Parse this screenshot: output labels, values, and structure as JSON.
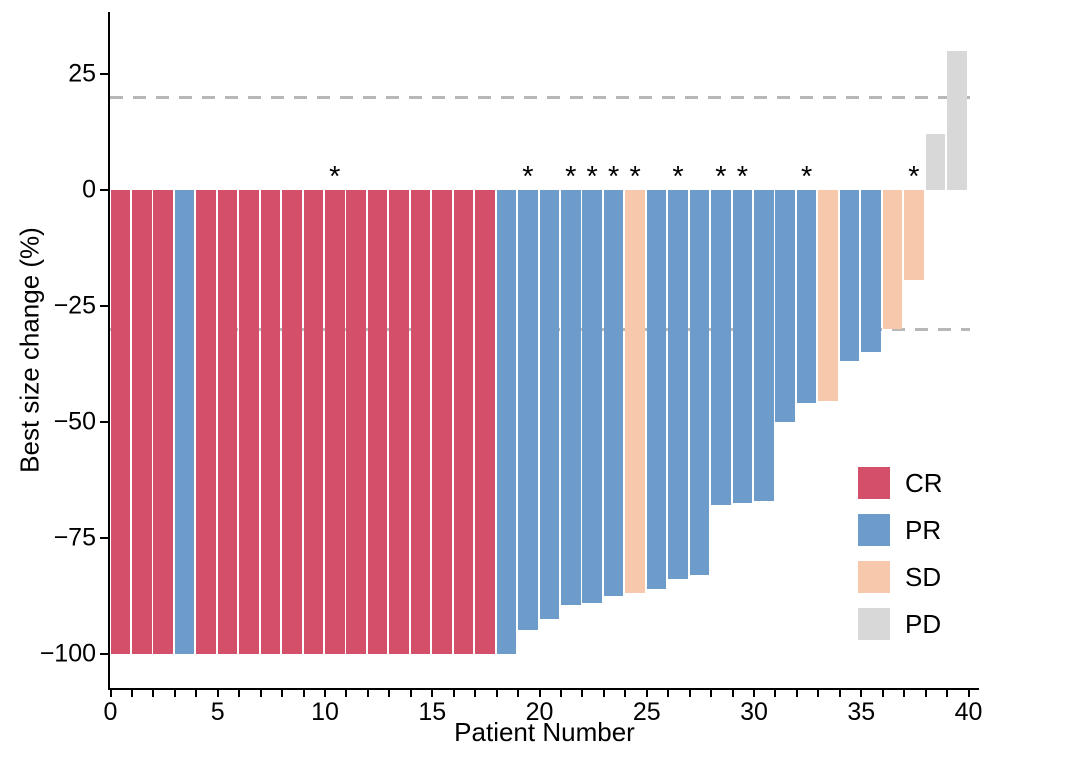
{
  "chart_data": {
    "type": "bar",
    "variant": "waterfall",
    "title": "",
    "xlabel": "Patient Number",
    "ylabel": "Best size change (%)",
    "x_ticks": [
      0,
      5,
      10,
      15,
      20,
      25,
      30,
      35,
      40
    ],
    "x_minor_ticks_every": 1,
    "x_axis_range": [
      0,
      40
    ],
    "y_ticks": [
      25,
      0,
      -25,
      -50,
      -75,
      -100
    ],
    "ylim": [
      -107,
      38
    ],
    "grid": "off",
    "reference_lines": {
      "values": [
        20,
        -30
      ],
      "style": "dashed",
      "color": "#b8b8b8"
    },
    "asterisk_symbol": "*",
    "legend": {
      "position": "inside-right",
      "entries": [
        {
          "label": "CR",
          "color": "#d4506a"
        },
        {
          "label": "PR",
          "color": "#6d9bca"
        },
        {
          "label": "SD",
          "color": "#f8c8ad"
        },
        {
          "label": "PD",
          "color": "#d8d8d8"
        }
      ]
    },
    "patients": [
      {
        "n": 1,
        "value": -100,
        "response": "CR",
        "asterisk": false
      },
      {
        "n": 2,
        "value": -100,
        "response": "CR",
        "asterisk": false
      },
      {
        "n": 3,
        "value": -100,
        "response": "CR",
        "asterisk": false
      },
      {
        "n": 4,
        "value": -100,
        "response": "PR",
        "asterisk": false
      },
      {
        "n": 5,
        "value": -100,
        "response": "CR",
        "asterisk": false
      },
      {
        "n": 6,
        "value": -100,
        "response": "CR",
        "asterisk": false
      },
      {
        "n": 7,
        "value": -100,
        "response": "CR",
        "asterisk": false
      },
      {
        "n": 8,
        "value": -100,
        "response": "CR",
        "asterisk": false
      },
      {
        "n": 9,
        "value": -100,
        "response": "CR",
        "asterisk": false
      },
      {
        "n": 10,
        "value": -100,
        "response": "CR",
        "asterisk": false
      },
      {
        "n": 11,
        "value": -100,
        "response": "CR",
        "asterisk": true
      },
      {
        "n": 12,
        "value": -100,
        "response": "CR",
        "asterisk": false
      },
      {
        "n": 13,
        "value": -100,
        "response": "CR",
        "asterisk": false
      },
      {
        "n": 14,
        "value": -100,
        "response": "CR",
        "asterisk": false
      },
      {
        "n": 15,
        "value": -100,
        "response": "CR",
        "asterisk": false
      },
      {
        "n": 16,
        "value": -100,
        "response": "CR",
        "asterisk": false
      },
      {
        "n": 17,
        "value": -100,
        "response": "CR",
        "asterisk": false
      },
      {
        "n": 18,
        "value": -100,
        "response": "CR",
        "asterisk": false
      },
      {
        "n": 19,
        "value": -100,
        "response": "PR",
        "asterisk": false
      },
      {
        "n": 20,
        "value": -95,
        "response": "PR",
        "asterisk": true
      },
      {
        "n": 21,
        "value": -92.5,
        "response": "PR",
        "asterisk": false
      },
      {
        "n": 22,
        "value": -89.5,
        "response": "PR",
        "asterisk": true
      },
      {
        "n": 23,
        "value": -89,
        "response": "PR",
        "asterisk": true
      },
      {
        "n": 24,
        "value": -87.5,
        "response": "PR",
        "asterisk": true
      },
      {
        "n": 25,
        "value": -87,
        "response": "SD",
        "asterisk": true
      },
      {
        "n": 26,
        "value": -86,
        "response": "PR",
        "asterisk": false
      },
      {
        "n": 27,
        "value": -84,
        "response": "PR",
        "asterisk": true
      },
      {
        "n": 28,
        "value": -83,
        "response": "PR",
        "asterisk": false
      },
      {
        "n": 29,
        "value": -68,
        "response": "PR",
        "asterisk": true
      },
      {
        "n": 30,
        "value": -67.5,
        "response": "PR",
        "asterisk": true
      },
      {
        "n": 31,
        "value": -67,
        "response": "PR",
        "asterisk": false
      },
      {
        "n": 32,
        "value": -50,
        "response": "PR",
        "asterisk": false
      },
      {
        "n": 33,
        "value": -46,
        "response": "PR",
        "asterisk": true
      },
      {
        "n": 34,
        "value": -45.5,
        "response": "SD",
        "asterisk": false
      },
      {
        "n": 35,
        "value": -37,
        "response": "PR",
        "asterisk": false
      },
      {
        "n": 36,
        "value": -35,
        "response": "PR",
        "asterisk": false
      },
      {
        "n": 37,
        "value": -30,
        "response": "SD",
        "asterisk": false
      },
      {
        "n": 38,
        "value": -19.5,
        "response": "SD",
        "asterisk": true
      },
      {
        "n": 39,
        "value": 12,
        "response": "PD",
        "asterisk": false
      },
      {
        "n": 40,
        "value": 30,
        "response": "PD",
        "asterisk": false
      }
    ]
  }
}
